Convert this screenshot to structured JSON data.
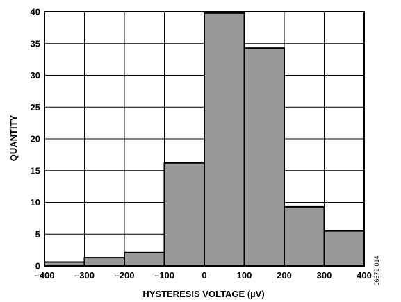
{
  "chart_data": {
    "type": "bar",
    "xlabel": "HYSTERESIS VOLTAGE (µV)",
    "ylabel": "QUANTITY",
    "figure_id": "06672-014",
    "xlim": [
      -400,
      400
    ],
    "ylim": [
      0,
      40
    ],
    "x_ticks": [
      -400,
      -300,
      -200,
      -100,
      0,
      100,
      200,
      300,
      400
    ],
    "x_tick_labels": [
      "–400",
      "–300",
      "–200",
      "–100",
      "0",
      "100",
      "200",
      "300",
      "400"
    ],
    "y_ticks": [
      0,
      5,
      10,
      15,
      20,
      25,
      30,
      35,
      40
    ],
    "y_tick_labels": [
      "0",
      "5",
      "10",
      "15",
      "20",
      "25",
      "30",
      "35",
      "40"
    ],
    "grid": true,
    "bins": [
      {
        "from": -400,
        "to": -300,
        "value": 0.6
      },
      {
        "from": -300,
        "to": -200,
        "value": 1.3
      },
      {
        "from": -200,
        "to": -100,
        "value": 2.1
      },
      {
        "from": -100,
        "to": 0,
        "value": 16.2
      },
      {
        "from": 0,
        "to": 100,
        "value": 39.8
      },
      {
        "from": 100,
        "to": 200,
        "value": 34.3
      },
      {
        "from": 200,
        "to": 300,
        "value": 9.3
      },
      {
        "from": 300,
        "to": 400,
        "value": 5.5
      }
    ],
    "colors": {
      "bar_fill": "#999999",
      "bar_stroke": "#000000",
      "grid": "#000000"
    }
  }
}
